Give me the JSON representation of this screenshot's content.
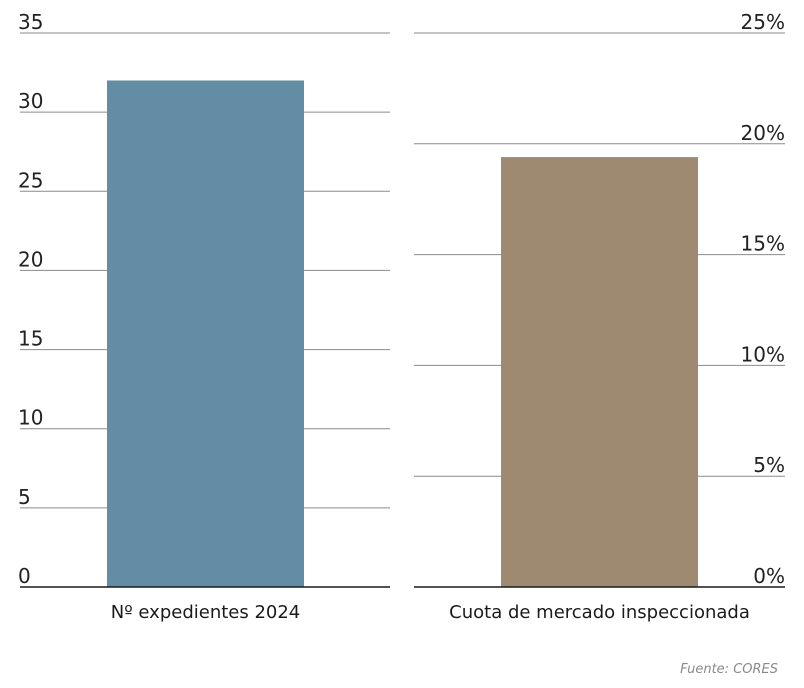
{
  "chart_data": [
    {
      "type": "bar",
      "categories": [
        "Nº expedientes 2024"
      ],
      "values": [
        32
      ],
      "ylim": [
        0,
        35
      ],
      "yticks": [
        0,
        5,
        10,
        15,
        20,
        25,
        30,
        35
      ],
      "ytick_labels": [
        "0",
        "5",
        "10",
        "15",
        "20",
        "25",
        "30",
        "35"
      ],
      "tick_side": "left",
      "grid": true,
      "color": "#628da5"
    },
    {
      "type": "bar",
      "categories": [
        "Cuota de mercado inspeccionada"
      ],
      "values": [
        19.4
      ],
      "ylim": [
        0,
        25
      ],
      "yticks": [
        0,
        5,
        10,
        15,
        20,
        25
      ],
      "ytick_labels": [
        "0%",
        "5%",
        "10%",
        "15%",
        "20%",
        "25%"
      ],
      "tick_side": "right",
      "grid": true,
      "color": "#9e8a70"
    }
  ],
  "source": "Fuente: CORES"
}
